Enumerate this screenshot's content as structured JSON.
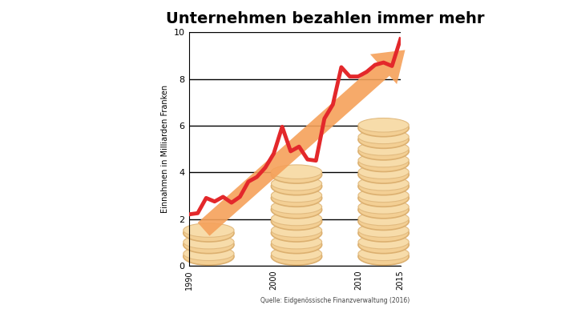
{
  "chart_data": {
    "type": "line",
    "title": "Unternehmen bezahlen immer mehr",
    "y_label": "Einnahmen in Milliarden Franken",
    "source": "Quelle: Eidgenössische Finanzverwaltung (2016)",
    "x": [
      1990,
      1991,
      1992,
      1993,
      1994,
      1995,
      1996,
      1997,
      1998,
      1999,
      2000,
      2001,
      2002,
      2003,
      2004,
      2005,
      2006,
      2007,
      2008,
      2009,
      2010,
      2011,
      2012,
      2013,
      2014,
      2015
    ],
    "values": [
      2.2,
      2.25,
      2.9,
      2.75,
      2.95,
      2.7,
      2.95,
      3.6,
      3.8,
      4.2,
      4.8,
      5.95,
      4.9,
      5.1,
      4.55,
      4.5,
      6.3,
      6.9,
      8.5,
      8.1,
      8.1,
      8.3,
      8.6,
      8.7,
      8.55,
      9.7
    ],
    "color": "#e3282b",
    "xlim": [
      1990,
      2015
    ],
    "xticks": [
      1990,
      2000,
      2010,
      2015
    ],
    "ylim": [
      0,
      10
    ],
    "yticks": [
      0,
      2,
      4,
      6,
      8,
      10
    ],
    "grid": true
  }
}
